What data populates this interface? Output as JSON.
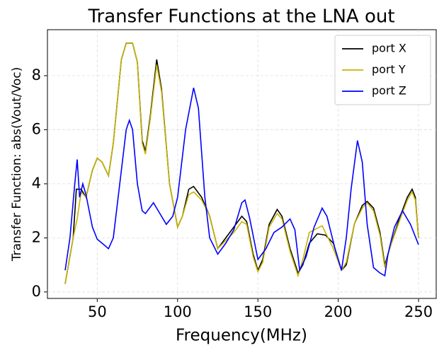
{
  "chart_data": {
    "type": "line",
    "title": "Transfer Functions at the LNA out",
    "xlabel": "Frequency(MHz)",
    "ylabel": "Transfer Function: abs(Vout/Voc)",
    "xlim": [
      19,
      261
    ],
    "xticks": [
      50,
      100,
      150,
      200,
      250
    ],
    "ylim": [
      -0.24,
      9.7
    ],
    "yticks": [
      0,
      2,
      4,
      6,
      8
    ],
    "grid": true,
    "legend": "upper right",
    "series": [
      {
        "name": "port X",
        "color": "#000000",
        "x": [
          30,
          35,
          37,
          40,
          43,
          47,
          50,
          53,
          57,
          60,
          65,
          68,
          72,
          75,
          78,
          80,
          83,
          87,
          90,
          95,
          100,
          103,
          107,
          110,
          115,
          120,
          125,
          130,
          135,
          140,
          143,
          147,
          150,
          153,
          157,
          162,
          165,
          170,
          175,
          178,
          182,
          187,
          192,
          197,
          202,
          205,
          210,
          215,
          218,
          222,
          226,
          229,
          232,
          238,
          243,
          246,
          248,
          250
        ],
        "values": [
          0.3,
          2.0,
          3.8,
          3.8,
          3.5,
          4.5,
          4.95,
          4.8,
          4.3,
          5.5,
          8.6,
          9.2,
          9.2,
          8.5,
          5.6,
          5.2,
          6.5,
          8.6,
          7.5,
          4.0,
          2.4,
          2.8,
          3.8,
          3.9,
          3.5,
          2.8,
          1.6,
          2.0,
          2.4,
          2.8,
          2.6,
          1.4,
          0.8,
          1.2,
          2.5,
          3.05,
          2.8,
          1.6,
          0.7,
          1.0,
          1.8,
          2.15,
          2.1,
          1.8,
          0.8,
          1.0,
          2.5,
          3.2,
          3.35,
          3.1,
          2.2,
          1.0,
          1.6,
          2.7,
          3.5,
          3.8,
          3.5,
          2.0
        ]
      },
      {
        "name": "port Y",
        "color": "#c8b400",
        "x": [
          30,
          35,
          37.5,
          40,
          43,
          47,
          50,
          53,
          57,
          60,
          65,
          68,
          72,
          75,
          78,
          80,
          83,
          87,
          90,
          95,
          100,
          103,
          107,
          110,
          115,
          120,
          125,
          130,
          135,
          140,
          143,
          147,
          150,
          153,
          157,
          162,
          165,
          170,
          175,
          178,
          182,
          190,
          197,
          202,
          205,
          210,
          215,
          218,
          222,
          226,
          229,
          232,
          238,
          243,
          246,
          248,
          250
        ],
        "values": [
          0.3,
          2.0,
          2.7,
          3.7,
          3.5,
          4.5,
          4.95,
          4.8,
          4.3,
          5.5,
          8.6,
          9.2,
          9.2,
          8.5,
          5.5,
          5.1,
          6.4,
          8.4,
          7.4,
          4.0,
          2.4,
          2.8,
          3.6,
          3.7,
          3.4,
          2.8,
          1.6,
          1.9,
          2.2,
          2.6,
          2.5,
          1.3,
          0.75,
          1.1,
          2.4,
          2.9,
          2.7,
          1.5,
          0.6,
          1.2,
          2.2,
          2.45,
          1.6,
          0.8,
          1.1,
          2.5,
          3.1,
          3.3,
          3.0,
          2.1,
          0.9,
          1.6,
          2.6,
          3.4,
          3.7,
          3.4,
          2.0
        ]
      },
      {
        "name": "port Z",
        "color": "#0000ff",
        "x": [
          30,
          33,
          36,
          37.5,
          39,
          41,
          43,
          47,
          50,
          55,
          57,
          60,
          65,
          68,
          70,
          72,
          75,
          78,
          80,
          85,
          88,
          93,
          97,
          100,
          105,
          110,
          113,
          117,
          120,
          125,
          130,
          135,
          140,
          142,
          145,
          150,
          155,
          160,
          165,
          170,
          173,
          176,
          180,
          185,
          190,
          193,
          198,
          202,
          205,
          208,
          212,
          215,
          218,
          222,
          226,
          229,
          231,
          235,
          240,
          245,
          250
        ],
        "values": [
          0.8,
          2.0,
          4.0,
          4.9,
          3.5,
          4.0,
          3.6,
          2.4,
          1.95,
          1.7,
          1.6,
          2.0,
          4.5,
          6.0,
          6.35,
          6.0,
          4.0,
          3.0,
          2.9,
          3.3,
          3.0,
          2.5,
          2.8,
          3.5,
          6.0,
          7.55,
          6.8,
          3.5,
          2.0,
          1.4,
          1.8,
          2.3,
          3.3,
          3.4,
          2.7,
          1.2,
          1.6,
          2.2,
          2.4,
          2.7,
          2.3,
          0.8,
          1.3,
          2.4,
          3.1,
          2.8,
          1.6,
          0.8,
          2.0,
          3.8,
          5.6,
          4.8,
          2.5,
          0.9,
          0.7,
          0.6,
          1.4,
          2.4,
          3.0,
          2.5,
          1.75
        ]
      }
    ]
  }
}
